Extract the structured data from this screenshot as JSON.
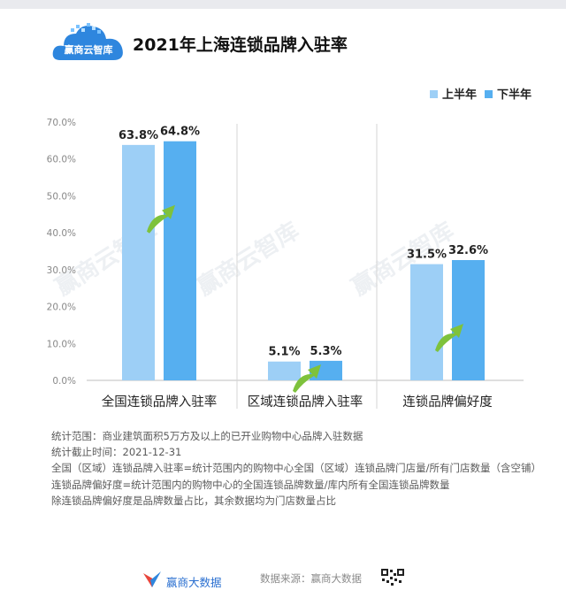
{
  "header": {
    "logo_text": "赢商云智库",
    "title": "2021年上海连锁品牌入驻率"
  },
  "watermark": "赢商云智库",
  "colors": {
    "first_half": "#9dcff6",
    "second_half": "#56aff0",
    "arrow": "#7ec23c",
    "axis_text": "#888888",
    "title": "#111111"
  },
  "chart_data": {
    "type": "bar",
    "title": "2021年上海连锁品牌入驻率",
    "categories": [
      "全国连锁品牌入驻率",
      "区域连锁品牌入驻率",
      "连锁品牌偏好度"
    ],
    "series": [
      {
        "name": "上半年",
        "values": [
          63.8,
          5.1,
          31.5
        ],
        "labels": [
          "63.8%",
          "5.1%",
          "31.5%"
        ]
      },
      {
        "name": "下半年",
        "values": [
          64.8,
          5.3,
          32.6
        ],
        "labels": [
          "64.8%",
          "5.3%",
          "32.6%"
        ]
      }
    ],
    "ylim": [
      0,
      70
    ],
    "yticks": [
      "0.0%",
      "10.0%",
      "20.0%",
      "30.0%",
      "40.0%",
      "50.0%",
      "60.0%",
      "70.0%"
    ],
    "legend_position": "top-right",
    "grid": false
  },
  "notes": [
    "统计范围：商业建筑面积5万方及以上的已开业购物中心品牌入驻数据",
    "统计截止时间：2021-12-31",
    "全国（区域）连锁品牌入驻率=统计范围内的购物中心全国（区域）连锁品牌门店量/所有门店数量（含空铺）",
    "连锁品牌偏好度=统计范围内的购物中心的全国连锁品牌数量/库内所有全国连锁品牌数量",
    "除连锁品牌偏好度是品牌数量占比，其余数据均为门店数量占比"
  ],
  "footer": {
    "brand": "赢商大数据",
    "source": "数据来源：赢商大数据"
  }
}
